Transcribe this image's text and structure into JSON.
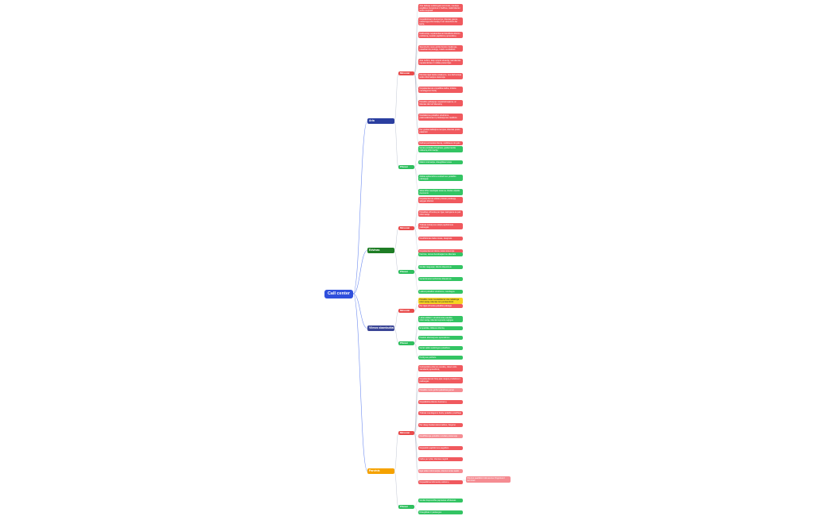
{
  "root": {
    "label": "Call center"
  },
  "colors": {
    "root": "#2f4fdc",
    "branch_1": "#2b3fa0",
    "branch_2": "#1e7d25",
    "branch_3": "#3a4596",
    "branch_4": "#f5a200",
    "minus": "#e94b4b",
    "plus": "#2fbf5e",
    "connector": "#6f8cf0"
  },
  "branches": [
    {
      "label": "Aria",
      "groups": [
        {
          "label": "Minusiai",
          "type": "minus",
          "items": [
            "Aria kalbėja sudėtingais terminais, naudoja angliškus trumpinius ir žodžius, todėl klientui sunku suprasti",
            "Nepatikslinami duomenys, klientas gauna neteisingą informaciją ir turi skambinti dar kartą",
            "Darbuotoja nepakankamai išsiaiškina kliento problemą, nesiūlo papildomų sprendimų",
            "Skambučio metu girdisi foninis triukšmas, pokalbiai kitų kolegų, trukdo susikalbėti",
            "Aria nežino, kaip spręsti situaciją, kai klientas nepatenkintas ir reiškia pretenzijas",
            "Klientas ilgai laukia atsakymo, nes darbuotoja ieško informacijos sistemoje",
            "Nepakankamai empatiška kalba, trūksta mandagumo frazių",
            "Pokalbio pabaigoje nepasiteiraujama, ar klientas dar turi klausimų",
            "Nesilaikoma pokalbio struktūros, pasisveikinimas ir prisistatymas neaiškūs",
            "Per greitas kalbėjimo tempas, klientas prašo pakartoti",
            "Dažnai pertraukia klientą, neišklauso iki galo"
          ]
        },
        {
          "label": "Pliusai",
          "type": "plus",
          "items": [
            "Geras produktų žinojimas, greitai randa reikiamą informaciją",
            "Maloni intonacija, draugiškas tonas",
            "Aiškiai apibendrina susitarimus pokalbio pabaigoje",
            "Sklandžiai naudojasi sistema, tiksliai užpildo duomenis"
          ]
        }
      ]
    },
    {
      "label": "Edvinas",
      "groups": [
        {
          "label": "Minusiai",
          "type": "minus",
          "items": [
            "Nepakankamai aiškiai pristato paslaugų sąlygas klientui",
            "Pokalbiai užtrunka per ilgai, kartojama ta pati informacija",
            "Trūksta iniciatyvos siūlyti papildomas paslaugas",
            "Neužtikrintas balso tonas, dvejonės",
            "Nepakankamai tikslūs įrašai sistemoje"
          ]
        },
        {
          "label": "Pliusai",
          "type": "plus",
          "items": [
            "Kantrus, ramus bendraujant su klientais",
            "Greitai reaguoja į kliento klausimus",
            "Gerai išmano techninius klausimus",
            "Laikosi pokalbio struktūros, mandagus"
          ]
        }
      ]
    },
    {
      "label": "Vilmos skambučiai",
      "groups": [
        {
          "label": "Minusiai",
          "type": "minus",
          "items": [
            "Pokalbio metu nesuteikiama visa reikalinga informacija, klientas turi perskambinti",
            "Per ilgai užtrunka pokalbio pabaiga"
          ]
        },
        {
          "label": "Pliusai",
          "type": "plus",
          "items": [
            "Labai aiškiai ir struktūruotai pateikia informaciją, klientai supranta sąlygas",
            "Empatiška, išklauso klientą",
            "Pasiūlo alternatyvius sprendimus",
            "Gerai valdo sudėtingus pokalbius",
            "Pozityvus požiūris"
          ]
        }
      ]
    },
    {
      "label": "Parvinis",
      "groups": [
        {
          "label": "Minusiai",
          "type": "minus",
          "items": [
            "Neišsiaiškina kliento poreikių, iškart siūlo standartinį sprendimą",
            "Nepakankamai žinių apie naujus produktus ir paslaugas",
            "Pokalbio metu girdisi pašaliniai garsai",
            "Nepatikslina kliento duomenų",
            "Trūksta mandagumo frazių pokalbio pradžioje",
            "Per daug šnekamosios kalbos, žargono",
            "Neužfiksuoja pokalbio rezultatų sistemoje",
            "Nepasiūlo papildomos pagalbos",
            "Kalba per tyliai, klientas negirdi",
            "Ilgai ieško informacijos, klientui tenka laukti",
            "Nepaaiškina tolimesnių veiksmų"
          ]
        },
        {
          "label": "Pliusai",
          "type": "plus",
          "items": [
            "Greitai išsprendžia paprastas užklausas",
            "Draugiškas ir paslaugus"
          ]
        }
      ]
    }
  ],
  "side_note": "Klientui paaiškinti tolimesnius žingsnius ir terminus"
}
